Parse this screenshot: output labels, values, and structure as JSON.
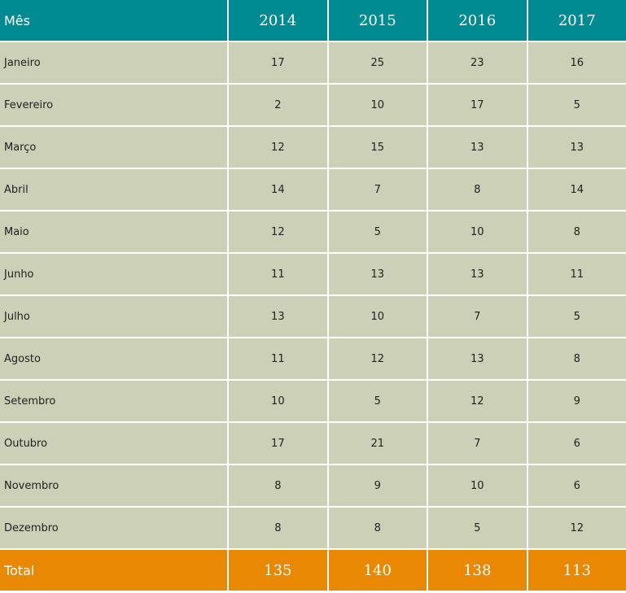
{
  "table": {
    "headers": [
      "Mês",
      "2014",
      "2015",
      "2016",
      "2017"
    ],
    "rows": [
      {
        "month": "Janeiro",
        "values": [
          "17",
          "25",
          "23",
          "16"
        ]
      },
      {
        "month": "Fevereiro",
        "values": [
          "2",
          "10",
          "17",
          "5"
        ]
      },
      {
        "month": "Março",
        "values": [
          "12",
          "15",
          "13",
          "13"
        ]
      },
      {
        "month": "Abril",
        "values": [
          "14",
          "7",
          "8",
          "14"
        ]
      },
      {
        "month": "Maio",
        "values": [
          "12",
          "5",
          "10",
          "8"
        ]
      },
      {
        "month": "Junho",
        "values": [
          "11",
          "13",
          "13",
          "11"
        ]
      },
      {
        "month": "Julho",
        "values": [
          "13",
          "10",
          "7",
          "5"
        ]
      },
      {
        "month": "Agosto",
        "values": [
          "11",
          "12",
          "13",
          "8"
        ]
      },
      {
        "month": "Setembro",
        "values": [
          "10",
          "5",
          "12",
          "9"
        ]
      },
      {
        "month": "Outubro",
        "values": [
          "17",
          "21",
          "7",
          "6"
        ]
      },
      {
        "month": "Novembro",
        "values": [
          "8",
          "9",
          "10",
          "6"
        ]
      },
      {
        "month": "Dezembro",
        "values": [
          "8",
          "8",
          "5",
          "12"
        ]
      }
    ],
    "total": {
      "label": "Total",
      "values": [
        "135",
        "140",
        "138",
        "113"
      ]
    }
  },
  "colors": {
    "header_bg": "#008b92",
    "row_bg": "#cbd0b6",
    "total_bg": "#e98903"
  }
}
